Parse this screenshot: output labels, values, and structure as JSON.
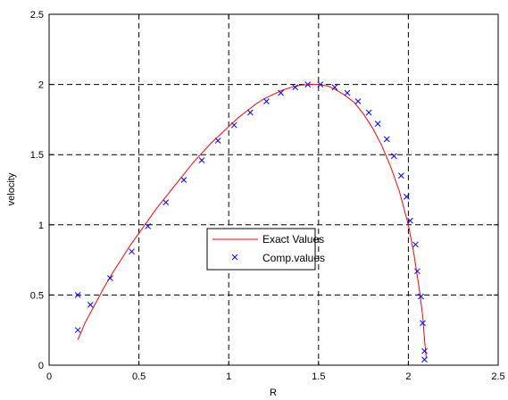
{
  "chart_data": {
    "type": "line",
    "xlabel": "R",
    "ylabel": "velocity",
    "xlim": [
      0,
      2.5
    ],
    "ylim": [
      0,
      2.5
    ],
    "xticks": [
      0,
      0.5,
      1,
      1.5,
      2,
      2.5
    ],
    "yticks": [
      0,
      0.5,
      1,
      1.5,
      2,
      2.5
    ],
    "xtick_labels": [
      "0",
      "0.5",
      "1",
      "1.5",
      "2",
      "2.5"
    ],
    "ytick_labels": [
      "0",
      "0.5",
      "1",
      "1.5",
      "2",
      "2.5"
    ],
    "grid": true,
    "legend_position": "center",
    "series": [
      {
        "name": "Exact Values",
        "style": "line",
        "color": "#ff0000",
        "x": [
          0.16,
          0.2,
          0.25,
          0.3,
          0.35,
          0.4,
          0.45,
          0.5,
          0.55,
          0.6,
          0.65,
          0.7,
          0.75,
          0.8,
          0.85,
          0.9,
          0.95,
          1.0,
          1.05,
          1.1,
          1.15,
          1.2,
          1.25,
          1.3,
          1.35,
          1.4,
          1.45,
          1.5,
          1.55,
          1.6,
          1.65,
          1.7,
          1.75,
          1.8,
          1.85,
          1.9,
          1.95,
          2.0,
          2.03,
          2.06,
          2.08,
          2.09,
          2.1
        ],
        "y": [
          0.18,
          0.3,
          0.42,
          0.54,
          0.65,
          0.75,
          0.85,
          0.94,
          1.03,
          1.12,
          1.2,
          1.28,
          1.36,
          1.44,
          1.51,
          1.58,
          1.64,
          1.7,
          1.76,
          1.81,
          1.86,
          1.9,
          1.93,
          1.96,
          1.98,
          1.995,
          2.0,
          2.0,
          1.99,
          1.96,
          1.92,
          1.87,
          1.79,
          1.69,
          1.57,
          1.42,
          1.24,
          1.0,
          0.8,
          0.55,
          0.35,
          0.18,
          0.05
        ]
      },
      {
        "name": "Comp.values",
        "style": "marker",
        "marker": "x",
        "color": "#0000ff",
        "x": [
          0.16,
          0.16,
          0.23,
          0.34,
          0.46,
          0.55,
          0.65,
          0.75,
          0.85,
          0.94,
          1.03,
          1.12,
          1.21,
          1.29,
          1.37,
          1.44,
          1.51,
          1.59,
          1.66,
          1.72,
          1.78,
          1.83,
          1.88,
          1.92,
          1.96,
          1.99,
          2.01,
          2.04,
          2.05,
          2.07,
          2.08,
          2.09,
          2.09
        ],
        "y": [
          0.25,
          0.5,
          0.43,
          0.62,
          0.81,
          0.99,
          1.16,
          1.32,
          1.46,
          1.6,
          1.71,
          1.8,
          1.88,
          1.94,
          1.98,
          2.0,
          2.0,
          1.98,
          1.94,
          1.88,
          1.8,
          1.72,
          1.61,
          1.49,
          1.35,
          1.2,
          1.03,
          0.86,
          0.67,
          0.49,
          0.3,
          0.1,
          0.04
        ]
      }
    ]
  }
}
